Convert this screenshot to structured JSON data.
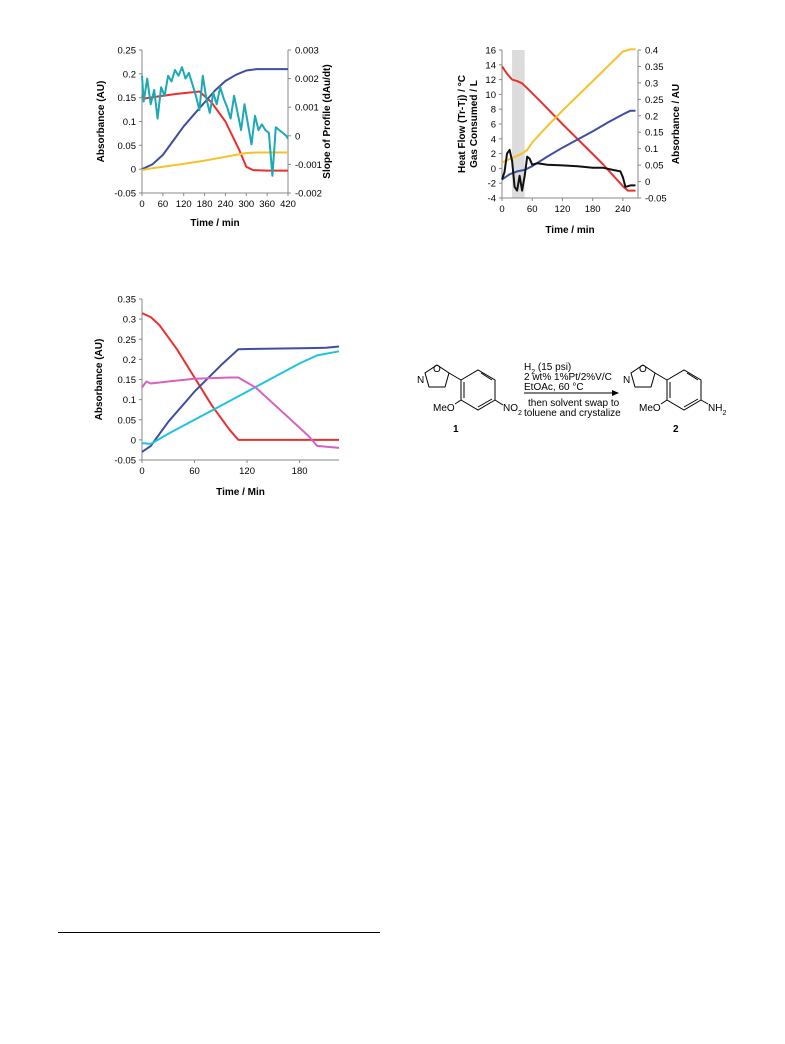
{
  "scheme": {
    "reagents_line1": "H2 (15 psi)",
    "reagents_line2": "2 wt% 1%Pt/2%V/C",
    "reagents_line3": "EtOAc, 60 °C",
    "reagents_line4": "then solvent swap to",
    "reagents_line5": "toluene and crystalize",
    "compound1_label": "1",
    "compound2_label": "2",
    "substituent_N": "N",
    "substituent_O": "O",
    "substituent_MeO": "MeO",
    "substituent_NO2": "NO2",
    "substituent_NH2": "NH2"
  },
  "chart_data": [
    {
      "type": "line",
      "xlabel": "Time / min",
      "ylabel": "Absorbance (AU)",
      "y2label": "Slope of Profile (dAu/dt)",
      "xlim": [
        0,
        420
      ],
      "ylim": [
        -0.05,
        0.25
      ],
      "y2lim": [
        -0.002,
        0.003
      ],
      "xticks": [
        0,
        60,
        120,
        180,
        240,
        300,
        360,
        420
      ],
      "yticks": [
        "-0.05",
        "0",
        "0.05",
        "0.1",
        "0.15",
        "0.2",
        "0.25"
      ],
      "y2ticks": [
        "-0.002",
        "-0.001",
        "0",
        "0.001",
        "0.002",
        "0.003"
      ],
      "grid": false,
      "series": [
        {
          "color": "#e8302f",
          "axis": "left",
          "x": [
            0,
            5,
            40,
            100,
            165,
            200,
            240,
            280,
            300,
            320,
            360,
            420
          ],
          "y": [
            0.155,
            0.148,
            0.152,
            0.158,
            0.163,
            0.14,
            0.1,
            0.04,
            0.005,
            -0.002,
            -0.003,
            -0.003
          ]
        },
        {
          "color": "#3d4ea3",
          "axis": "left",
          "x": [
            0,
            30,
            60,
            90,
            120,
            150,
            180,
            210,
            240,
            270,
            300,
            330,
            360,
            420
          ],
          "y": [
            0,
            0.01,
            0.03,
            0.06,
            0.09,
            0.115,
            0.14,
            0.165,
            0.185,
            0.198,
            0.207,
            0.21,
            0.21,
            0.21
          ]
        },
        {
          "color": "#f5c22b",
          "axis": "left",
          "x": [
            0,
            30,
            60,
            120,
            180,
            240,
            270,
            300,
            330,
            360,
            420
          ],
          "y": [
            -0.002,
            0.002,
            0.005,
            0.011,
            0.018,
            0.026,
            0.03,
            0.034,
            0.035,
            0.035,
            0.035
          ]
        },
        {
          "color": "#1aa9b5",
          "axis": "right",
          "x": [
            0,
            5,
            15,
            25,
            35,
            45,
            55,
            65,
            75,
            85,
            95,
            105,
            115,
            125,
            135,
            145,
            155,
            165,
            175,
            185,
            195,
            205,
            215,
            225,
            235,
            245,
            255,
            265,
            275,
            285,
            295,
            305,
            315,
            325,
            335,
            345,
            355,
            365,
            375,
            385,
            395,
            405,
            415,
            420
          ],
          "y": [
            0.0021,
            0.0012,
            0.002,
            0.0011,
            0.0016,
            0.0006,
            0.0017,
            0.0014,
            0.0021,
            0.0019,
            0.0023,
            0.0021,
            0.0024,
            0.002,
            0.0022,
            0.0018,
            0.0014,
            0.0009,
            0.0021,
            0.0013,
            0.0008,
            0.0015,
            0.0011,
            0.0017,
            0.0013,
            0.001,
            0.0006,
            0.0014,
            0.0008,
            0.0002,
            0.0011,
            0.0004,
            -0.0003,
            0.0007,
            0.0002,
            0.0004,
            0.0002,
            0.0001,
            -0.0014,
            0.0003,
            0.0002,
            0.0001,
            0,
            -0.0001
          ]
        }
      ]
    },
    {
      "type": "line",
      "xlabel": "Time / min",
      "ylabel": "Heat Flow (Tr-Tj) / °C",
      "ylabel2": "Gas Consumed / L",
      "y2label": "Absorbance / AU",
      "xlim": [
        0,
        270
      ],
      "ylim": [
        -4,
        16
      ],
      "y2lim": [
        -0.05,
        0.4
      ],
      "xticks": [
        0,
        60,
        120,
        180,
        240
      ],
      "yticks": [
        "-4",
        "-2",
        "0",
        "2",
        "4",
        "6",
        "8",
        "10",
        "12",
        "14",
        "16"
      ],
      "y2ticks": [
        "-0.05",
        "0",
        "0.05",
        "0.1",
        "0.15",
        "0.2",
        "0.25",
        "0.3",
        "0.35",
        "0.4"
      ],
      "shaded_region": [
        20,
        45
      ],
      "grid": false,
      "series": [
        {
          "color": "#e8302f",
          "axis": "left",
          "x": [
            0,
            10,
            20,
            30,
            40,
            55,
            80,
            120,
            160,
            200,
            240,
            250,
            265
          ],
          "y": [
            13.8,
            12.8,
            12,
            11.8,
            11.5,
            10.5,
            8.8,
            6,
            3.3,
            0.6,
            -2.4,
            -3,
            -3
          ]
        },
        {
          "color": "#f5c22b",
          "axis": "left",
          "x": [
            0,
            20,
            40,
            50,
            60,
            90,
            120,
            150,
            180,
            210,
            240,
            255,
            265
          ],
          "y": [
            0.8,
            1.4,
            2,
            2.5,
            3.5,
            5.7,
            7.8,
            9.8,
            11.8,
            13.8,
            15.8,
            16.1,
            16.1
          ]
        },
        {
          "color": "#3d4ea3",
          "axis": "left",
          "x": [
            0,
            15,
            30,
            45,
            60,
            90,
            120,
            150,
            180,
            210,
            240,
            255,
            265
          ],
          "y": [
            -1.5,
            -0.8,
            -0.4,
            -0.2,
            0.3,
            1.6,
            2.8,
            3.9,
            5,
            6.2,
            7.3,
            7.8,
            7.8
          ]
        },
        {
          "color": "#111111",
          "axis": "left",
          "x": [
            0,
            5,
            10,
            15,
            20,
            25,
            30,
            35,
            40,
            45,
            50,
            55,
            60,
            70,
            90,
            120,
            150,
            180,
            200,
            220,
            235,
            240,
            245,
            255,
            265
          ],
          "y": [
            -1.5,
            -0.5,
            2,
            2.5,
            1,
            -2.5,
            -3,
            -1,
            -3,
            -1,
            1.6,
            1.3,
            0.5,
            0.7,
            0.5,
            0.4,
            0.3,
            0.1,
            0.1,
            -0.2,
            -0.4,
            -1.2,
            -2.5,
            -2.3,
            -2.3
          ]
        }
      ]
    },
    {
      "type": "line",
      "xlabel": "Time / Min",
      "ylabel": "Absorbance (AU)",
      "xlim": [
        0,
        225
      ],
      "ylim": [
        -0.05,
        0.35
      ],
      "xticks": [
        0,
        60,
        120,
        180
      ],
      "yticks": [
        "-0.05",
        "0",
        "0.05",
        "0.1",
        "0.15",
        "0.2",
        "0.25",
        "0.3",
        "0.35"
      ],
      "grid": false,
      "series": [
        {
          "color": "#e8302f",
          "axis": "left",
          "x": [
            0,
            10,
            20,
            40,
            60,
            80,
            100,
            110,
            130,
            160,
            200,
            225
          ],
          "y": [
            0.315,
            0.305,
            0.285,
            0.225,
            0.155,
            0.085,
            0.025,
            0,
            0,
            0,
            0,
            0
          ]
        },
        {
          "color": "#3d4ea3",
          "axis": "left",
          "x": [
            0,
            10,
            30,
            60,
            90,
            110,
            130,
            160,
            190,
            210,
            225
          ],
          "y": [
            -0.03,
            -0.015,
            0.045,
            0.12,
            0.185,
            0.225,
            0.226,
            0.227,
            0.228,
            0.229,
            0.232
          ]
        },
        {
          "color": "#1ec3e0",
          "axis": "left",
          "x": [
            0,
            10,
            30,
            60,
            90,
            120,
            150,
            180,
            200,
            225
          ],
          "y": [
            -0.008,
            -0.01,
            0.015,
            0.05,
            0.085,
            0.12,
            0.155,
            0.19,
            0.21,
            0.22
          ]
        },
        {
          "color": "#d960c0",
          "axis": "left",
          "x": [
            0,
            5,
            10,
            30,
            60,
            100,
            110,
            130,
            160,
            190,
            200,
            225
          ],
          "y": [
            0.13,
            0.145,
            0.14,
            0.145,
            0.152,
            0.155,
            0.155,
            0.13,
            0.07,
            0.01,
            -0.015,
            -0.02
          ]
        }
      ]
    }
  ]
}
